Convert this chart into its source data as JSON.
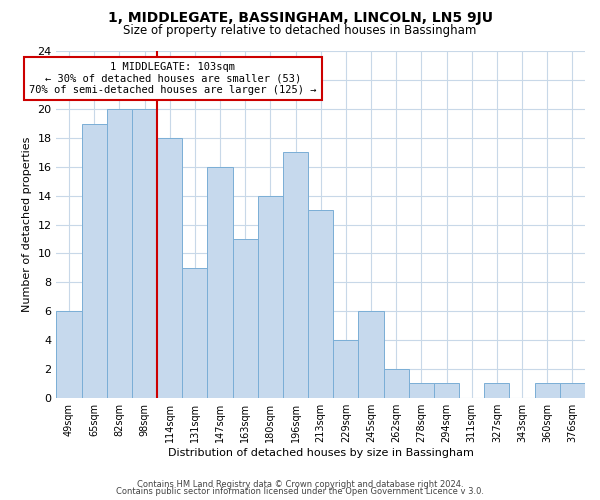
{
  "title1": "1, MIDDLEGATE, BASSINGHAM, LINCOLN, LN5 9JU",
  "title2": "Size of property relative to detached houses in Bassingham",
  "xlabel": "Distribution of detached houses by size in Bassingham",
  "ylabel": "Number of detached properties",
  "categories": [
    "49sqm",
    "65sqm",
    "82sqm",
    "98sqm",
    "114sqm",
    "131sqm",
    "147sqm",
    "163sqm",
    "180sqm",
    "196sqm",
    "213sqm",
    "229sqm",
    "245sqm",
    "262sqm",
    "278sqm",
    "294sqm",
    "311sqm",
    "327sqm",
    "343sqm",
    "360sqm",
    "376sqm"
  ],
  "values": [
    6,
    19,
    20,
    20,
    18,
    9,
    16,
    11,
    14,
    17,
    13,
    4,
    6,
    2,
    1,
    1,
    0,
    1,
    0,
    1,
    1
  ],
  "bar_color": "#c6d9ed",
  "bar_edge_color": "#7aaed6",
  "red_line_index": 3,
  "annotation_title": "1 MIDDLEGATE: 103sqm",
  "annotation_line1": "← 30% of detached houses are smaller (53)",
  "annotation_line2": "70% of semi-detached houses are larger (125) →",
  "annotation_box_edge": "#cc0000",
  "red_line_color": "#cc0000",
  "ylim": [
    0,
    24
  ],
  "yticks": [
    0,
    2,
    4,
    6,
    8,
    10,
    12,
    14,
    16,
    18,
    20,
    22,
    24
  ],
  "footer1": "Contains HM Land Registry data © Crown copyright and database right 2024.",
  "footer2": "Contains public sector information licensed under the Open Government Licence v 3.0.",
  "background_color": "#ffffff",
  "grid_color": "#c8d8e8"
}
